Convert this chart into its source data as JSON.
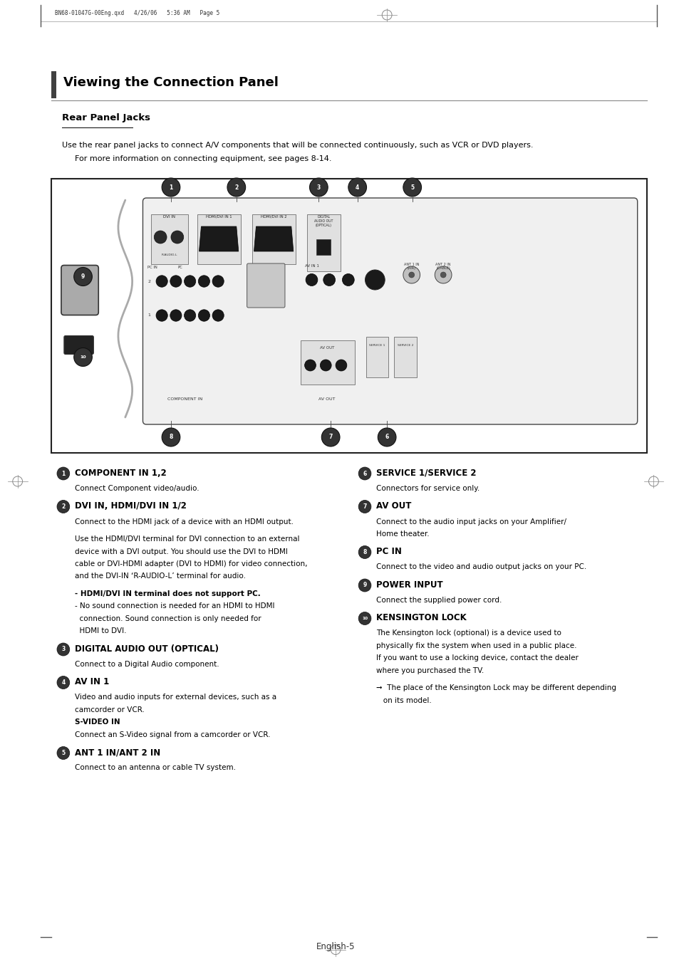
{
  "bg_color": "#ffffff",
  "page_width": 9.54,
  "page_height": 13.51,
  "header_text": "BN68-01047G-00Eng.qxd   4/26/06   5:36 AM   Page 5",
  "title": "Viewing the Connection Panel",
  "subtitle": "Rear Panel Jacks",
  "intro_line1": "Use the rear panel jacks to connect A/V components that will be connected continuously, such as VCR or DVD players.",
  "intro_line2": "For more information on connecting equipment, see pages 8-14.",
  "footer": "English-5",
  "left_col_items": [
    {
      "bullet": "1",
      "heading": "COMPONENT IN 1,2",
      "body": "Connect Component video/audio."
    },
    {
      "bullet": "2",
      "heading": "DVI IN, HDMI/DVI IN 1/2",
      "body": "Connect to the HDMI jack of a device with an HDMI output.\n\nUse the HDMI/DVI terminal for DVI connection to an external\ndevice with a DVI output. You should use the DVI to HDMI\ncable or DVI-HDMI adapter (DVI to HDMI) for video connection,\nand the DVI-IN ‘R-AUDIO-L’ terminal for audio.\n\n- HDMI/DVI IN terminal does not support PC.\n- No sound connection is needed for an HDMI to HDMI\n  connection. Sound connection is only needed for\n  HDMI to DVI."
    },
    {
      "bullet": "3",
      "heading": "DIGITAL AUDIO OUT (OPTICAL)",
      "body": "Connect to a Digital Audio component."
    },
    {
      "bullet": "4",
      "heading": "AV IN 1",
      "body": "Video and audio inputs for external devices, such as a\ncamcorder or VCR.\nS-VIDEO IN\nConnect an S-Video signal from a camcorder or VCR."
    },
    {
      "bullet": "5",
      "heading": "ANT 1 IN/ANT 2 IN",
      "body": "Connect to an antenna or cable TV system."
    }
  ],
  "right_col_items": [
    {
      "bullet": "6",
      "heading": "SERVICE 1/SERVICE 2",
      "body": "Connectors for service only."
    },
    {
      "bullet": "7",
      "heading": "AV OUT",
      "body": "Connect to the audio input jacks on your Amplifier/\nHome theater."
    },
    {
      "bullet": "8",
      "heading": "PC IN",
      "body": "Connect to the video and audio output jacks on your PC."
    },
    {
      "bullet": "9",
      "heading": "POWER INPUT",
      "body": "Connect the supplied power cord."
    },
    {
      "bullet": "10",
      "heading": "KENSINGTON LOCK",
      "body": "The Kensington lock (optional) is a device used to\nphysically fix the system when used in a public place.\nIf you want to use a locking device, contact the dealer\nwhere you purchased the TV.\n\n➞  The place of the Kensington Lock may be different depending\n   on its model."
    }
  ]
}
